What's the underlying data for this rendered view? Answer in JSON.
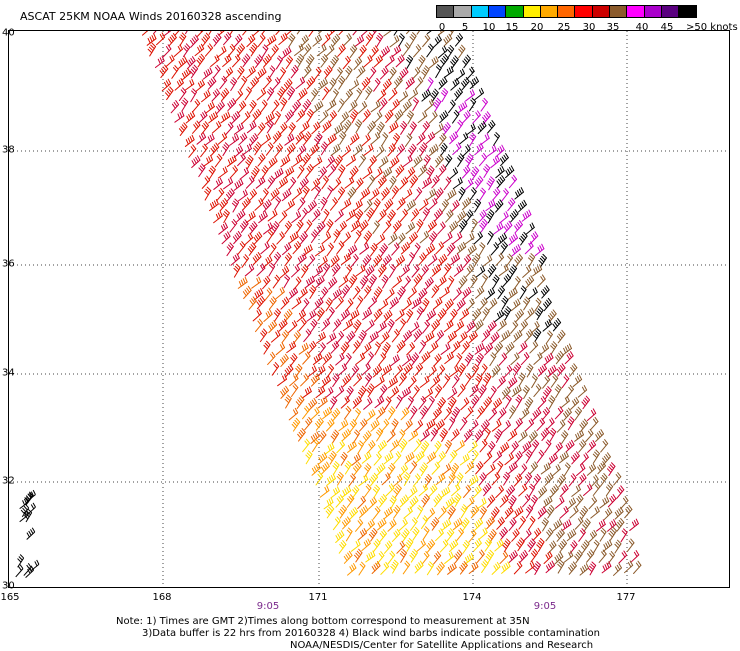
{
  "title": "ASCAT 25KM NOAA Winds 20160328 ascending",
  "legend": {
    "colors": [
      "#555555",
      "#aaaaaa",
      "#00ccff",
      "#0044ff",
      "#00aa00",
      "#ffee00",
      "#ffaa00",
      "#ff6600",
      "#ff0000",
      "#cc0000",
      "#8b5a2b",
      "#ff00ff",
      "#aa00cc",
      "#5a0080",
      "#000000"
    ],
    "labels": [
      "0",
      "5",
      "10",
      "15",
      "20",
      "25",
      "30",
      "35",
      "40",
      "45",
      ">50 knots"
    ]
  },
  "map": {
    "lat_labels": [
      "40",
      "38",
      "36",
      "34",
      "32",
      "30"
    ],
    "lon_labels": [
      "165",
      "168",
      "171",
      "174",
      "177"
    ],
    "lat_range": [
      30,
      40
    ],
    "lon_range": [
      165,
      179
    ],
    "grid": "dotted"
  },
  "pass_times": [
    "9:05",
    "9:05"
  ],
  "notes": [
    "Note: 1) Times are GMT 2)Times along bottom correspond to measurement at 35N",
    "3)Data buffer is 22 hrs from 20160328 4) Black wind barbs indicate possible contamination",
    "NOAA/NESDIS/Center for Satellite Applications and Research"
  ],
  "barb_colors": {
    "brown": "#8b5a2b",
    "red": "#dd1100",
    "crimson": "#cc0033",
    "orange": "#ee6600",
    "amber": "#ff9900",
    "yellow": "#ffdd00",
    "magenta": "#cc00cc",
    "black": "#000000"
  }
}
